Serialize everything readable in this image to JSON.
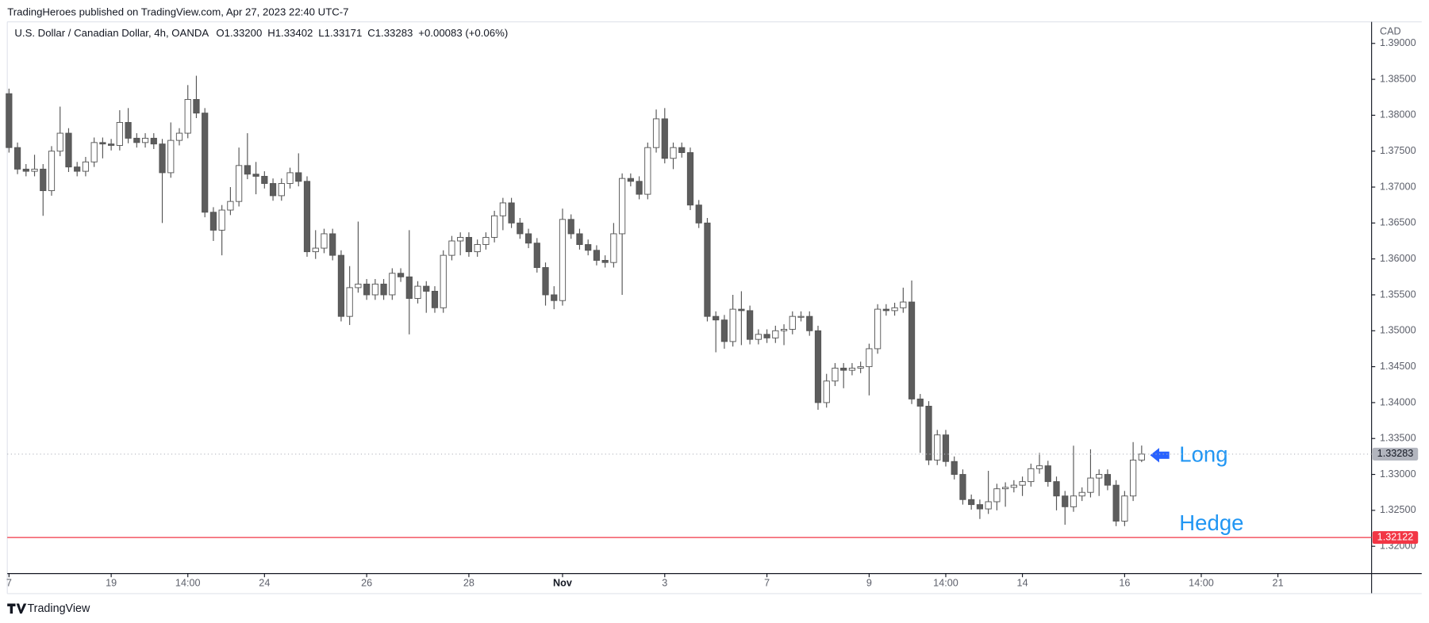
{
  "header": "TradingHeroes published on TradingView.com, Apr 27, 2023 22:40 UTC-7",
  "footer": "TradingView",
  "chart_data": {
    "type": "candlestick",
    "title": "U.S. Dollar / Canadian Dollar, 4h, OANDA",
    "ohlc_labels": [
      "O1.33200",
      "H1.33402",
      "L1.33171",
      "C1.33283",
      "+0.00083 (+0.06%)"
    ],
    "currency": "CAD",
    "up_color": "#ffffff",
    "down_color": "#5d5d5d",
    "wick_color": "#555555",
    "ylim": [
      1.3162,
      1.393
    ],
    "yticks": [
      {
        "value": 1.32,
        "label": "1.32000"
      },
      {
        "value": 1.325,
        "label": "1.32500"
      },
      {
        "value": 1.33,
        "label": "1.33000"
      },
      {
        "value": 1.335,
        "label": "1.33500"
      },
      {
        "value": 1.34,
        "label": "1.34000"
      },
      {
        "value": 1.345,
        "label": "1.34500"
      },
      {
        "value": 1.35,
        "label": "1.35000"
      },
      {
        "value": 1.355,
        "label": "1.35500"
      },
      {
        "value": 1.36,
        "label": "1.36000"
      },
      {
        "value": 1.365,
        "label": "1.36500"
      },
      {
        "value": 1.37,
        "label": "1.37000"
      },
      {
        "value": 1.375,
        "label": "1.37500"
      },
      {
        "value": 1.38,
        "label": "1.38000"
      },
      {
        "value": 1.385,
        "label": "1.38500"
      },
      {
        "value": 1.39,
        "label": "1.39000"
      }
    ],
    "xlim": [
      -0.2,
      160
    ],
    "xticks": [
      {
        "value": 0,
        "label": "7"
      },
      {
        "value": 12,
        "label": "19"
      },
      {
        "value": 21,
        "label": "14:00"
      },
      {
        "value": 30,
        "label": "24"
      },
      {
        "value": 42,
        "label": "26"
      },
      {
        "value": 54,
        "label": "28"
      },
      {
        "value": 65,
        "label": "Nov"
      },
      {
        "value": 77,
        "label": "3"
      },
      {
        "value": 89,
        "label": "7"
      },
      {
        "value": 101,
        "label": "9"
      },
      {
        "value": 110,
        "label": "14:00"
      },
      {
        "value": 119,
        "label": "14"
      },
      {
        "value": 131,
        "label": "16"
      },
      {
        "value": 140,
        "label": "14:00"
      },
      {
        "value": 149,
        "label": "21"
      }
    ],
    "price_lines": [
      {
        "value": 1.33283,
        "label": "1.33283",
        "color": "#b2b5be",
        "style": "dotted"
      },
      {
        "value": 1.32122,
        "label": "1.32122",
        "color": "#f23645",
        "style": "solid"
      }
    ],
    "annotations": [
      "Long",
      "Hedge"
    ],
    "ohlc": [
      [
        1.383,
        1.3837,
        1.3748,
        1.3755
      ],
      [
        1.3755,
        1.3762,
        1.3718,
        1.3725
      ],
      [
        1.3725,
        1.3732,
        1.3715,
        1.3722
      ],
      [
        1.3722,
        1.3745,
        1.3715,
        1.3725
      ],
      [
        1.3725,
        1.3732,
        1.366,
        1.3695
      ],
      [
        1.3695,
        1.3757,
        1.3688,
        1.375
      ],
      [
        1.375,
        1.3812,
        1.3743,
        1.3775
      ],
      [
        1.3775,
        1.3782,
        1.3721,
        1.3728
      ],
      [
        1.3728,
        1.3735,
        1.3715,
        1.3722
      ],
      [
        1.3722,
        1.3742,
        1.3715,
        1.3735
      ],
      [
        1.3735,
        1.3769,
        1.3728,
        1.3762
      ],
      [
        1.3762,
        1.3769,
        1.374,
        1.376
      ],
      [
        1.376,
        1.3767,
        1.3751,
        1.3758
      ],
      [
        1.3758,
        1.3807,
        1.3751,
        1.379
      ],
      [
        1.379,
        1.381,
        1.3761,
        1.3768
      ],
      [
        1.3768,
        1.3775,
        1.3755,
        1.3762
      ],
      [
        1.3762,
        1.3775,
        1.3755,
        1.3768
      ],
      [
        1.3768,
        1.3775,
        1.3753,
        1.376
      ],
      [
        1.376,
        1.3767,
        1.365,
        1.372
      ],
      [
        1.372,
        1.379,
        1.3713,
        1.3765
      ],
      [
        1.3765,
        1.3782,
        1.3758,
        1.3775
      ],
      [
        1.3775,
        1.3842,
        1.3768,
        1.3822
      ],
      [
        1.3822,
        1.3855,
        1.3796,
        1.3803
      ],
      [
        1.3803,
        1.381,
        1.3658,
        1.3665
      ],
      [
        1.3665,
        1.3672,
        1.3625,
        1.364
      ],
      [
        1.364,
        1.3675,
        1.3605,
        1.3668
      ],
      [
        1.3668,
        1.37,
        1.3661,
        1.368
      ],
      [
        1.368,
        1.3755,
        1.3673,
        1.373
      ],
      [
        1.373,
        1.3775,
        1.3711,
        1.3718
      ],
      [
        1.3718,
        1.3735,
        1.369,
        1.3715
      ],
      [
        1.3715,
        1.3722,
        1.3698,
        1.3705
      ],
      [
        1.3705,
        1.3712,
        1.3681,
        1.3688
      ],
      [
        1.3688,
        1.3712,
        1.3681,
        1.3705
      ],
      [
        1.3705,
        1.3727,
        1.3698,
        1.372
      ],
      [
        1.372,
        1.3747,
        1.3701,
        1.3708
      ],
      [
        1.3708,
        1.3715,
        1.3603,
        1.361
      ],
      [
        1.361,
        1.364,
        1.36,
        1.3615
      ],
      [
        1.3615,
        1.3642,
        1.3608,
        1.3635
      ],
      [
        1.3635,
        1.3642,
        1.3598,
        1.3605
      ],
      [
        1.3605,
        1.3612,
        1.3513,
        1.352
      ],
      [
        1.352,
        1.359,
        1.3508,
        1.356
      ],
      [
        1.356,
        1.3652,
        1.3553,
        1.3565
      ],
      [
        1.3565,
        1.3572,
        1.3543,
        1.355
      ],
      [
        1.355,
        1.3572,
        1.3543,
        1.3565
      ],
      [
        1.3565,
        1.3572,
        1.3543,
        1.355
      ],
      [
        1.355,
        1.3587,
        1.3543,
        1.358
      ],
      [
        1.358,
        1.3587,
        1.3568,
        1.3575
      ],
      [
        1.3575,
        1.364,
        1.3495,
        1.3545
      ],
      [
        1.3545,
        1.3569,
        1.3538,
        1.3562
      ],
      [
        1.3562,
        1.3569,
        1.3525,
        1.3555
      ],
      [
        1.3555,
        1.3562,
        1.3525,
        1.3532
      ],
      [
        1.3532,
        1.3612,
        1.3525,
        1.3605
      ],
      [
        1.3605,
        1.3632,
        1.3598,
        1.3625
      ],
      [
        1.3625,
        1.3637,
        1.3605,
        1.363
      ],
      [
        1.363,
        1.3637,
        1.3603,
        1.361
      ],
      [
        1.361,
        1.3627,
        1.3603,
        1.362
      ],
      [
        1.362,
        1.3637,
        1.3613,
        1.363
      ],
      [
        1.363,
        1.3667,
        1.3623,
        1.366
      ],
      [
        1.366,
        1.3685,
        1.364,
        1.3678
      ],
      [
        1.3678,
        1.3685,
        1.3643,
        1.365
      ],
      [
        1.365,
        1.3657,
        1.3628,
        1.3635
      ],
      [
        1.3635,
        1.3642,
        1.3615,
        1.3622
      ],
      [
        1.3622,
        1.3629,
        1.3581,
        1.3588
      ],
      [
        1.3588,
        1.3595,
        1.3535,
        1.355
      ],
      [
        1.355,
        1.3562,
        1.353,
        1.3542
      ],
      [
        1.3542,
        1.367,
        1.3535,
        1.3655
      ],
      [
        1.3655,
        1.3662,
        1.3628,
        1.3635
      ],
      [
        1.3635,
        1.3642,
        1.3613,
        1.362
      ],
      [
        1.362,
        1.3627,
        1.3605,
        1.3612
      ],
      [
        1.3612,
        1.3619,
        1.3591,
        1.3598
      ],
      [
        1.3598,
        1.3605,
        1.3588,
        1.3595
      ],
      [
        1.3595,
        1.365,
        1.3588,
        1.3635
      ],
      [
        1.3635,
        1.3719,
        1.355,
        1.3712
      ],
      [
        1.3712,
        1.3719,
        1.3701,
        1.3708
      ],
      [
        1.3708,
        1.3715,
        1.3683,
        1.369
      ],
      [
        1.369,
        1.3762,
        1.3683,
        1.3755
      ],
      [
        1.3755,
        1.3808,
        1.3748,
        1.3795
      ],
      [
        1.3795,
        1.381,
        1.3733,
        1.374
      ],
      [
        1.374,
        1.3762,
        1.3725,
        1.3755
      ],
      [
        1.3755,
        1.3762,
        1.3741,
        1.3748
      ],
      [
        1.3748,
        1.3755,
        1.3668,
        1.3675
      ],
      [
        1.3675,
        1.3682,
        1.3643,
        1.365
      ],
      [
        1.365,
        1.3657,
        1.3513,
        1.352
      ],
      [
        1.352,
        1.3527,
        1.347,
        1.3515
      ],
      [
        1.3515,
        1.3522,
        1.3475,
        1.3485
      ],
      [
        1.3485,
        1.355,
        1.3478,
        1.353
      ],
      [
        1.353,
        1.3555,
        1.348,
        1.3528
      ],
      [
        1.3528,
        1.3535,
        1.3481,
        1.3488
      ],
      [
        1.3488,
        1.3502,
        1.3481,
        1.3495
      ],
      [
        1.3495,
        1.3502,
        1.3483,
        1.349
      ],
      [
        1.349,
        1.3507,
        1.3483,
        1.35
      ],
      [
        1.35,
        1.3509,
        1.348,
        1.3502
      ],
      [
        1.3502,
        1.3527,
        1.3495,
        1.352
      ],
      [
        1.352,
        1.3527,
        1.3513,
        1.352
      ],
      [
        1.352,
        1.3527,
        1.3493,
        1.35
      ],
      [
        1.35,
        1.3507,
        1.339,
        1.34
      ],
      [
        1.34,
        1.344,
        1.3393,
        1.343
      ],
      [
        1.343,
        1.3455,
        1.3423,
        1.3448
      ],
      [
        1.3448,
        1.3455,
        1.342,
        1.3445
      ],
      [
        1.3445,
        1.3455,
        1.3438,
        1.3448
      ],
      [
        1.3448,
        1.3457,
        1.3441,
        1.345
      ],
      [
        1.345,
        1.3482,
        1.341,
        1.3475
      ],
      [
        1.3475,
        1.3537,
        1.3468,
        1.353
      ],
      [
        1.353,
        1.3537,
        1.3521,
        1.3528
      ],
      [
        1.3528,
        1.3539,
        1.3521,
        1.3532
      ],
      [
        1.3532,
        1.356,
        1.3525,
        1.354
      ],
      [
        1.354,
        1.357,
        1.3398,
        1.3405
      ],
      [
        1.3405,
        1.3412,
        1.333,
        1.3395
      ],
      [
        1.3395,
        1.3402,
        1.3313,
        1.332
      ],
      [
        1.332,
        1.3362,
        1.3313,
        1.3355
      ],
      [
        1.3355,
        1.3362,
        1.3311,
        1.3318
      ],
      [
        1.3318,
        1.3325,
        1.3293,
        1.33
      ],
      [
        1.33,
        1.3307,
        1.3258,
        1.3265
      ],
      [
        1.3265,
        1.3272,
        1.3251,
        1.3258
      ],
      [
        1.3258,
        1.3265,
        1.3238,
        1.3252
      ],
      [
        1.3252,
        1.3305,
        1.3245,
        1.3262
      ],
      [
        1.3262,
        1.3287,
        1.325,
        1.328
      ],
      [
        1.328,
        1.3289,
        1.3255,
        1.3282
      ],
      [
        1.3282,
        1.3292,
        1.3275,
        1.3285
      ],
      [
        1.3285,
        1.3297,
        1.327,
        1.329
      ],
      [
        1.329,
        1.3315,
        1.3283,
        1.3308
      ],
      [
        1.3308,
        1.333,
        1.3301,
        1.3312
      ],
      [
        1.3312,
        1.3319,
        1.3283,
        1.329
      ],
      [
        1.329,
        1.3297,
        1.325,
        1.327
      ],
      [
        1.327,
        1.3277,
        1.323,
        1.3255
      ],
      [
        1.3255,
        1.334,
        1.3248,
        1.327
      ],
      [
        1.327,
        1.3282,
        1.3263,
        1.3275
      ],
      [
        1.3275,
        1.3335,
        1.3268,
        1.3295
      ],
      [
        1.3295,
        1.3307,
        1.327,
        1.33
      ],
      [
        1.33,
        1.3307,
        1.3278,
        1.3285
      ],
      [
        1.3285,
        1.3292,
        1.3228,
        1.3235
      ],
      [
        1.3235,
        1.3277,
        1.3228,
        1.327
      ],
      [
        1.327,
        1.3345,
        1.3263,
        1.332
      ],
      [
        1.332,
        1.33402,
        1.33171,
        1.33283
      ]
    ]
  }
}
